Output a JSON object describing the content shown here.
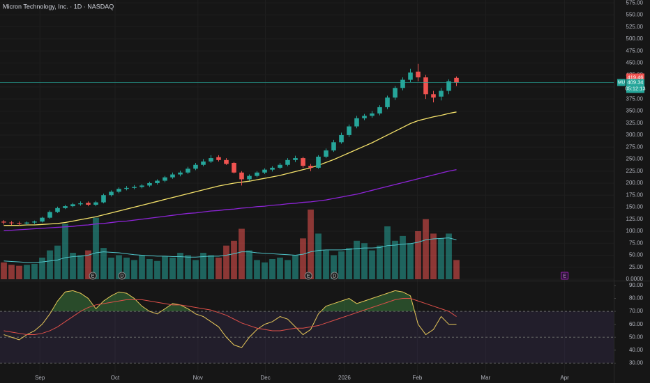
{
  "chart_data": [
    {
      "type": "candlestick",
      "title": "Micron Technology, Inc. · 1D · NASDAQ",
      "symbol": "MU",
      "last_price": 409.34,
      "countdown": "05:12:13",
      "prev_close": 419.46,
      "up_color": "#26a69a",
      "down_color": "#ef5350",
      "xlim": [
        -0.5,
        79.5
      ],
      "xticks": [
        {
          "value": 4.7,
          "label": "Sep"
        },
        {
          "value": 14.5,
          "label": "Oct"
        },
        {
          "value": 25.3,
          "label": "Nov"
        },
        {
          "value": 34.1,
          "label": "Dec"
        },
        {
          "value": 44.4,
          "label": "2026"
        },
        {
          "value": 53.9,
          "label": "Feb"
        },
        {
          "value": 62.8,
          "label": "Mar"
        },
        {
          "value": 73.1,
          "label": "Apr"
        }
      ],
      "ylim": [
        0,
        581
      ],
      "yticks": [
        {
          "value": 0,
          "label": "0.0000"
        },
        {
          "value": 25,
          "label": "25.00"
        },
        {
          "value": 50,
          "label": "50.00"
        },
        {
          "value": 75,
          "label": "75.00"
        },
        {
          "value": 100,
          "label": "100.00"
        },
        {
          "value": 125,
          "label": "125.00"
        },
        {
          "value": 150,
          "label": "150.00"
        },
        {
          "value": 175,
          "label": "175.00"
        },
        {
          "value": 200,
          "label": "200.00"
        },
        {
          "value": 225,
          "label": "225.00"
        },
        {
          "value": 250,
          "label": "250.00"
        },
        {
          "value": 275,
          "label": "275.00"
        },
        {
          "value": 300,
          "label": "300.00"
        },
        {
          "value": 325,
          "label": "325.00"
        },
        {
          "value": 350,
          "label": "350.00"
        },
        {
          "value": 375,
          "label": "375.00"
        },
        {
          "value": 400,
          "label": "400.00"
        },
        {
          "value": 425,
          "label": "425.00"
        },
        {
          "value": 450,
          "label": "450.00"
        },
        {
          "value": 475,
          "label": "475.00"
        },
        {
          "value": 500,
          "label": "500.00"
        },
        {
          "value": 525,
          "label": "525.00"
        },
        {
          "value": 550,
          "label": "550.00"
        },
        {
          "value": 575,
          "label": "575.00"
        }
      ],
      "open": [
        120,
        118,
        117,
        116,
        118,
        120,
        128,
        140,
        148,
        152,
        156,
        159,
        155,
        160,
        175,
        182,
        188,
        190,
        192,
        195,
        200,
        205,
        212,
        218,
        222,
        230,
        238,
        245,
        254,
        248,
        242,
        222,
        208,
        215,
        222,
        228,
        232,
        238,
        248,
        252,
        236,
        232,
        255,
        268,
        285,
        300,
        318,
        335,
        340,
        345,
        358,
        378,
        398,
        415,
        432,
        420,
        385,
        380,
        392,
        419
      ],
      "high": [
        123,
        121,
        120,
        120,
        122,
        130,
        143,
        151,
        155,
        159,
        162,
        162,
        163,
        178,
        185,
        191,
        194,
        196,
        198,
        203,
        208,
        215,
        222,
        226,
        234,
        242,
        250,
        258,
        258,
        252,
        244,
        225,
        218,
        225,
        231,
        235,
        242,
        252,
        257,
        255,
        240,
        258,
        272,
        290,
        305,
        322,
        340,
        344,
        350,
        362,
        382,
        402,
        420,
        438,
        448,
        425,
        392,
        398,
        416,
        422
      ],
      "low": [
        114,
        113,
        112,
        113,
        115,
        118,
        126,
        138,
        146,
        150,
        153,
        152,
        152,
        158,
        172,
        179,
        185,
        187,
        189,
        192,
        197,
        202,
        209,
        214,
        219,
        227,
        235,
        242,
        245,
        238,
        220,
        195,
        205,
        212,
        219,
        224,
        229,
        235,
        244,
        232,
        225,
        230,
        252,
        265,
        282,
        296,
        314,
        331,
        336,
        341,
        354,
        373,
        393,
        410,
        412,
        375,
        368,
        372,
        385,
        402
      ],
      "close": [
        118,
        117,
        116,
        118,
        120,
        128,
        140,
        148,
        152,
        156,
        158,
        155,
        160,
        175,
        182,
        188,
        190,
        192,
        195,
        200,
        205,
        212,
        218,
        222,
        230,
        238,
        245,
        252,
        248,
        240,
        222,
        208,
        215,
        222,
        228,
        232,
        238,
        248,
        252,
        236,
        232,
        255,
        268,
        285,
        300,
        318,
        335,
        340,
        345,
        358,
        378,
        398,
        415,
        430,
        420,
        385,
        378,
        392,
        412,
        409
      ],
      "overlays": [
        {
          "color": "#f5e26b",
          "values": [
            112,
            112,
            112,
            113,
            113,
            114,
            115,
            116,
            118,
            121,
            124,
            127,
            130,
            134,
            138,
            142,
            146,
            150,
            154,
            158,
            162,
            166,
            170,
            174,
            178,
            182,
            186,
            190,
            194,
            197,
            200,
            202,
            204,
            207,
            210,
            213,
            216,
            220,
            224,
            228,
            232,
            237,
            243,
            249,
            256,
            263,
            270,
            277,
            284,
            292,
            300,
            308,
            316,
            324,
            330,
            334,
            338,
            341,
            345,
            348
          ]
        },
        {
          "color": "#8e24d8",
          "values": [
            101,
            102,
            103,
            104,
            105,
            106,
            107,
            108,
            109,
            110,
            112,
            113,
            115,
            116,
            118,
            120,
            121,
            123,
            125,
            127,
            129,
            131,
            133,
            135,
            137,
            138,
            140,
            142,
            143,
            145,
            146,
            148,
            149,
            151,
            152,
            154,
            155,
            157,
            158,
            160,
            161,
            163,
            165,
            168,
            171,
            174,
            177,
            181,
            185,
            189,
            193,
            197,
            201,
            205,
            209,
            213,
            217,
            221,
            225,
            228
          ]
        }
      ],
      "volume": {
        "values": [
          35,
          30,
          28,
          30,
          32,
          45,
          60,
          70,
          115,
          55,
          50,
          60,
          128,
          65,
          45,
          50,
          45,
          40,
          50,
          42,
          38,
          48,
          45,
          55,
          50,
          40,
          55,
          50,
          45,
          70,
          80,
          105,
          60,
          40,
          35,
          42,
          45,
          40,
          50,
          85,
          145,
          95,
          60,
          50,
          58,
          65,
          80,
          75,
          60,
          70,
          110,
          80,
          90,
          75,
          100,
          125,
          95,
          85,
          95,
          40
        ],
        "ma_color": "#4fc3c8",
        "ma": [
          38,
          37,
          36,
          35,
          35,
          36,
          38,
          40,
          45,
          47,
          48,
          50,
          55,
          57,
          56,
          55,
          53,
          51,
          50,
          49,
          48,
          48,
          47,
          47,
          46,
          46,
          47,
          48,
          48,
          50,
          53,
          57,
          57,
          55,
          54,
          53,
          52,
          51,
          50,
          52,
          57,
          60,
          61,
          61,
          61,
          62,
          64,
          65,
          65,
          66,
          70,
          71,
          73,
          74,
          77,
          82,
          84,
          85,
          86,
          82
        ]
      },
      "events": [
        {
          "label": "E",
          "x": 11.6
        },
        {
          "label": "D",
          "x": 15.4
        },
        {
          "label": "E",
          "x": 39.7
        },
        {
          "label": "D",
          "x": 43.1
        },
        {
          "label": "E",
          "x": 73.1
        }
      ]
    },
    {
      "type": "line",
      "ylim": [
        20,
        93.2
      ],
      "yticks": [
        {
          "value": 30,
          "label": "30.00"
        },
        {
          "value": 40,
          "label": "40.00"
        },
        {
          "value": 50,
          "label": "50.00"
        },
        {
          "value": 60,
          "label": "60.00"
        },
        {
          "value": 70,
          "label": "70.00"
        },
        {
          "value": 80,
          "label": "80.00"
        },
        {
          "value": 90,
          "label": "90.00"
        }
      ],
      "levels": [
        70,
        50,
        30
      ],
      "band_color": "#7e57c2",
      "series": [
        {
          "color": "#e8c95a",
          "values": [
            52,
            50,
            48,
            52,
            55,
            60,
            68,
            78,
            85,
            86,
            84,
            80,
            72,
            78,
            82,
            85,
            84,
            80,
            74,
            70,
            68,
            72,
            76,
            75,
            72,
            68,
            66,
            62,
            58,
            50,
            44,
            42,
            50,
            56,
            60,
            62,
            66,
            64,
            58,
            52,
            56,
            68,
            74,
            76,
            78,
            80,
            76,
            78,
            80,
            82,
            84,
            86,
            85,
            82,
            60,
            52,
            56,
            66,
            60,
            60
          ]
        },
        {
          "color": "#e0504a",
          "values": [
            55,
            54,
            53,
            52,
            52,
            53,
            55,
            58,
            62,
            66,
            70,
            73,
            75,
            76,
            77,
            78,
            79,
            79,
            79,
            78,
            77,
            76,
            75,
            75,
            74,
            73,
            72,
            71,
            69,
            67,
            64,
            61,
            59,
            57,
            56,
            55,
            55,
            56,
            57,
            57,
            58,
            59,
            61,
            63,
            65,
            67,
            69,
            71,
            73,
            75,
            77,
            79,
            80,
            80,
            78,
            76,
            74,
            72,
            70,
            66
          ]
        }
      ]
    }
  ]
}
